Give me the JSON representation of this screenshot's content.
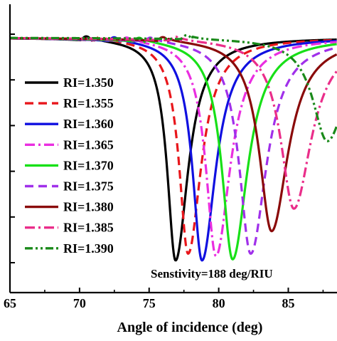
{
  "chart_data": {
    "type": "line",
    "title": "",
    "xlabel": "Angle of incidence (deg)",
    "ylabel": "",
    "xlim": [
      65,
      88.5
    ],
    "xticks": [
      65,
      70,
      75,
      80,
      85
    ],
    "ylim": [
      0,
      1.0
    ],
    "yticks": [
      0.0,
      0.2,
      0.4,
      0.6,
      0.8,
      1.0
    ],
    "grid": false,
    "legend_position": "left",
    "annotation": "Senstivity=188 deg/RIU",
    "series": [
      {
        "name": "RI=1.350",
        "color": "#000000",
        "dash": "solid",
        "resonance_angle": 76.9,
        "min_value": 0.01,
        "critical_angle": 70.4
      },
      {
        "name": "RI=1.355",
        "color": "#e8161b",
        "dash": "dash",
        "resonance_angle": 77.8,
        "min_value": 0.04,
        "critical_angle": 71.4
      },
      {
        "name": "RI=1.360",
        "color": "#1010e0",
        "dash": "solid",
        "resonance_angle": 78.8,
        "min_value": 0.01,
        "critical_angle": 72.4
      },
      {
        "name": "RI=1.365",
        "color": "#ea2ee0",
        "dash": "dashdot",
        "resonance_angle": 79.8,
        "min_value": 0.03,
        "critical_angle": 73.3
      },
      {
        "name": "RI=1.370",
        "color": "#18e018",
        "dash": "solid",
        "resonance_angle": 81.0,
        "min_value": 0.015,
        "critical_angle": 74.2
      },
      {
        "name": "RI=1.375",
        "color": "#a030ea",
        "dash": "dash",
        "resonance_angle": 82.3,
        "min_value": 0.04,
        "critical_angle": 75.0
      },
      {
        "name": "RI=1.380",
        "color": "#8a0a0a",
        "dash": "solid",
        "resonance_angle": 83.8,
        "min_value": 0.14,
        "critical_angle": 75.9
      },
      {
        "name": "RI=1.385",
        "color": "#ea2e8a",
        "dash": "dashdot",
        "resonance_angle": 85.4,
        "min_value": 0.24,
        "critical_angle": 76.8
      },
      {
        "name": "RI=1.390",
        "color": "#1a8a1a",
        "dash": "dashdotdot",
        "resonance_angle": 87.8,
        "min_value": 0.54,
        "critical_angle": 77.6
      }
    ]
  }
}
